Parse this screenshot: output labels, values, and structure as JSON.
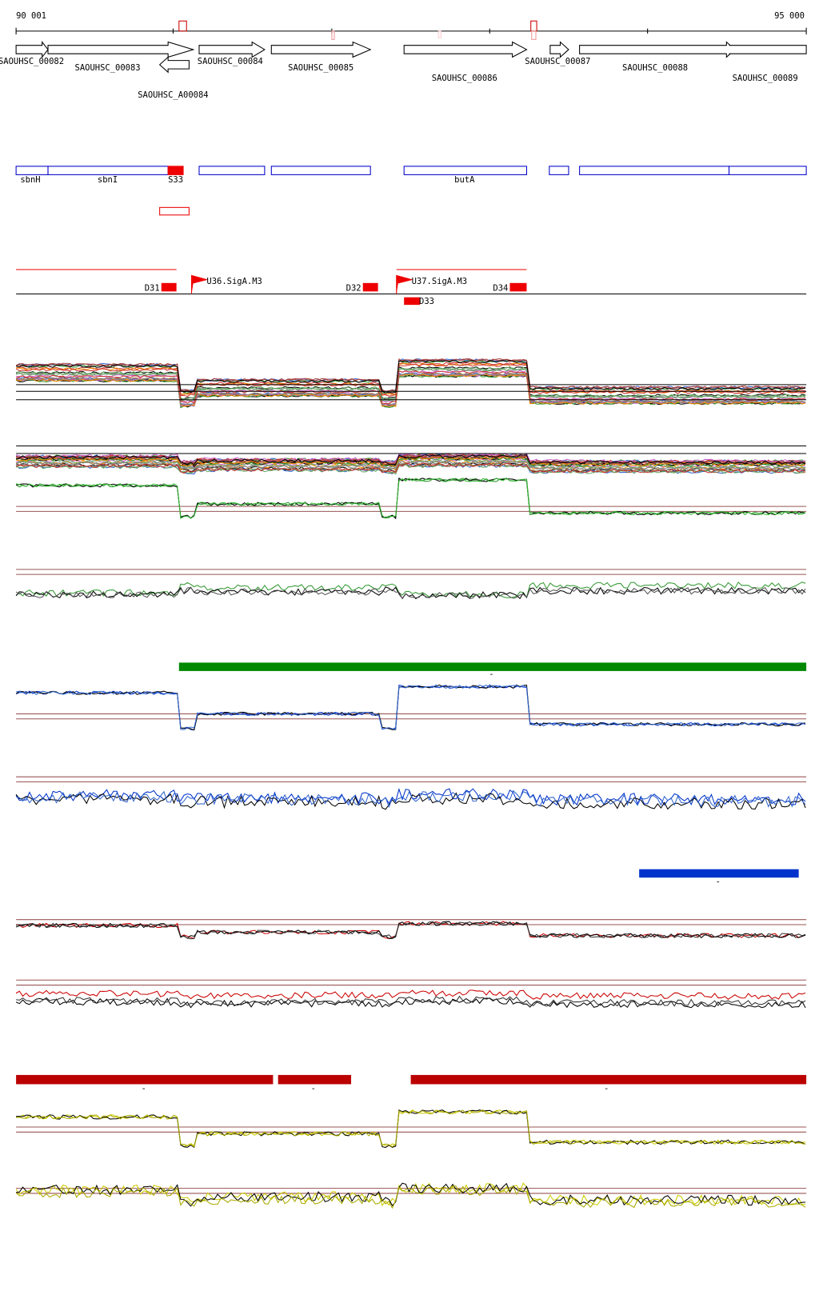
{
  "header": {
    "start": "90 001",
    "end": "95 000"
  },
  "genes": [
    "SAOUHSC_00082",
    "SAOUHSC_00083",
    "SAOUHSC_A00084",
    "SAOUHSC_00084",
    "SAOUHSC_00085",
    "SAOUHSC_00086",
    "SAOUHSC_00087",
    "SAOUHSC_00088",
    "SAOUHSC_00089"
  ],
  "features": [
    "sbnH",
    "sbnI",
    "S33",
    "butA"
  ],
  "regions": [
    "D31",
    "U36.SigA.M3",
    "D32",
    "U37.SigA.M3",
    "D34",
    "D33"
  ],
  "bars": [
    "-",
    "-",
    "-",
    "-",
    "-"
  ]
}
